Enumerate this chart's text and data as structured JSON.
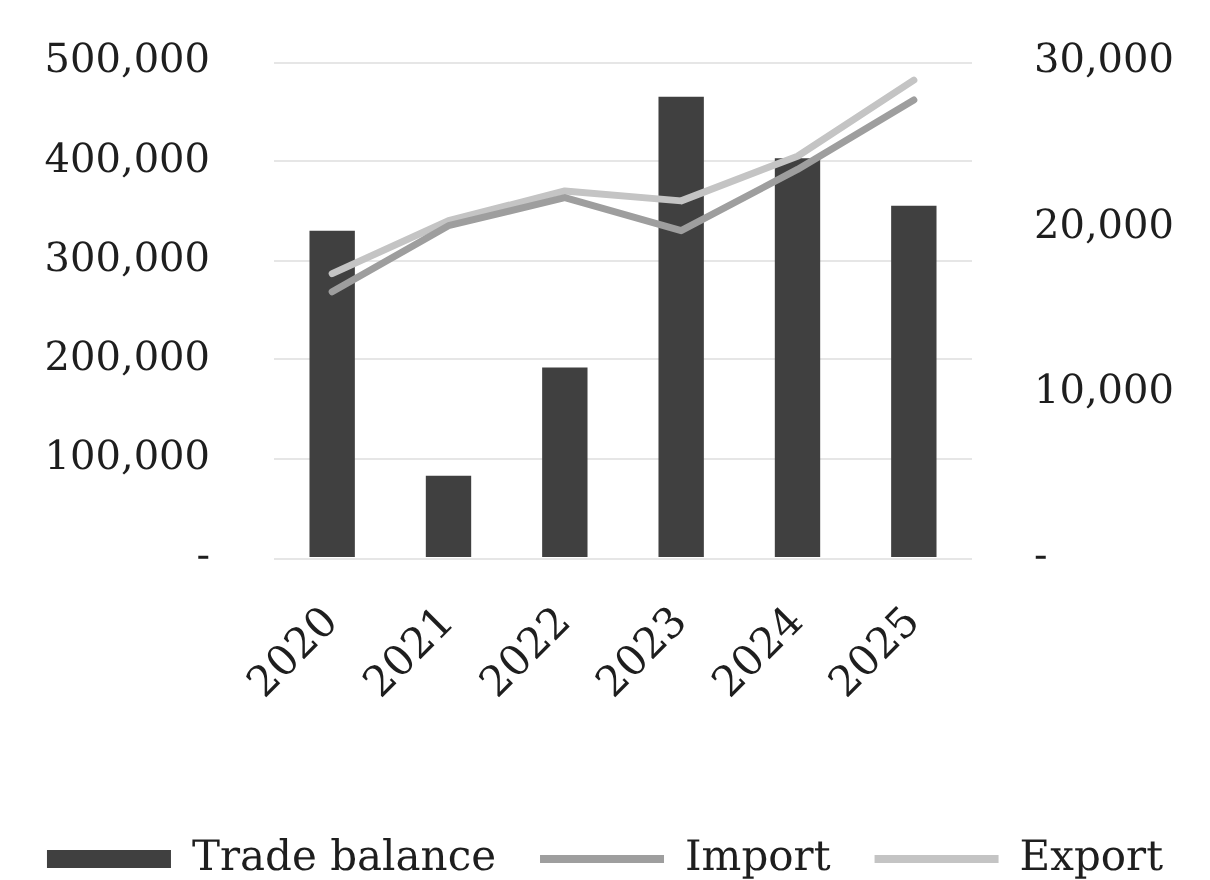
{
  "chart_data": {
    "type": "bar",
    "categories": [
      "2020",
      "2021",
      "2022",
      "2023",
      "2024",
      "2025"
    ],
    "series": [
      {
        "name": "Trade balance",
        "color": "#404040",
        "values": [
          330000,
          83000,
          192000,
          465000,
          403000,
          355000
        ]
      },
      {
        "name": "Import",
        "type": "line",
        "axis": "y2",
        "color": "#9e9e9e",
        "values": [
          16100,
          20100,
          21800,
          19800,
          23500,
          27700
        ]
      },
      {
        "name": "Export",
        "type": "line",
        "axis": "y2",
        "color": "#c4c4c4",
        "values": [
          17200,
          20400,
          22200,
          21600,
          24300,
          28900
        ]
      }
    ],
    "ylim": [
      0,
      500000
    ],
    "yticks": [
      {
        "value": 0,
        "label": "-"
      },
      {
        "value": 100000,
        "label": "100,000"
      },
      {
        "value": 200000,
        "label": "200,000"
      },
      {
        "value": 300000,
        "label": "300,000"
      },
      {
        "value": 400000,
        "label": "400,000"
      },
      {
        "value": 500000,
        "label": "500,000"
      }
    ],
    "y2lim": [
      0,
      30000
    ],
    "y2ticks": [
      {
        "value": 0,
        "label": "-"
      },
      {
        "value": 10000,
        "label": "10,000"
      },
      {
        "value": 20000,
        "label": "20,000"
      },
      {
        "value": 30000,
        "label": "30,000"
      }
    ],
    "grid": "y",
    "legend": "bottom"
  }
}
